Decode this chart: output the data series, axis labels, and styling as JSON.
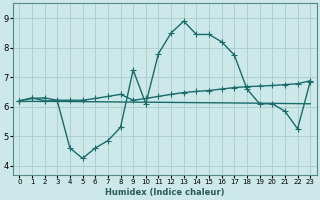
{
  "xlabel": "Humidex (Indice chaleur)",
  "xlim": [
    -0.5,
    23.5
  ],
  "ylim": [
    3.7,
    9.5
  ],
  "xticks": [
    0,
    1,
    2,
    3,
    4,
    5,
    6,
    7,
    8,
    9,
    10,
    11,
    12,
    13,
    14,
    15,
    16,
    17,
    18,
    19,
    20,
    21,
    22,
    23
  ],
  "yticks": [
    4,
    5,
    6,
    7,
    8,
    9
  ],
  "bg_color": "#cce8e8",
  "grid_color": "#aacccc",
  "line_color": "#1a6b6b",
  "line1_x": [
    0,
    1,
    2,
    3,
    4,
    5,
    6,
    7,
    8,
    9,
    10,
    11,
    12,
    13,
    14,
    15,
    16,
    17,
    18,
    19,
    20,
    21,
    22,
    23
  ],
  "line1_y": [
    6.2,
    6.3,
    6.2,
    6.2,
    4.6,
    4.25,
    4.6,
    4.85,
    5.3,
    7.25,
    6.1,
    7.8,
    8.5,
    8.9,
    8.45,
    8.45,
    8.2,
    7.75,
    6.6,
    6.1,
    6.1,
    5.85,
    5.25,
    6.85
  ],
  "line2_x": [
    0,
    1,
    2,
    3,
    4,
    5,
    6,
    7,
    8,
    9,
    10,
    11,
    12,
    13,
    14,
    15,
    16,
    17,
    18,
    19,
    20,
    21,
    22,
    23
  ],
  "line2_y": [
    6.2,
    6.28,
    6.3,
    6.22,
    6.22,
    6.22,
    6.28,
    6.35,
    6.42,
    6.22,
    6.28,
    6.35,
    6.42,
    6.48,
    6.52,
    6.55,
    6.6,
    6.65,
    6.68,
    6.7,
    6.72,
    6.75,
    6.78,
    6.88
  ],
  "line3_x": [
    0,
    3,
    19,
    23
  ],
  "line3_y": [
    6.18,
    6.18,
    6.12,
    6.1
  ]
}
